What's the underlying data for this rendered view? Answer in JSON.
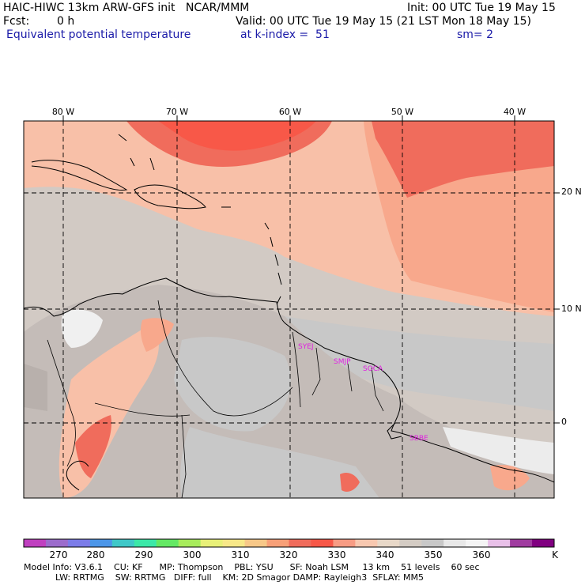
{
  "header": {
    "line1_left": "HAIC-HIWC 13km ARW-GFS init   NCAR/MMM",
    "line1_right": "Init: 00 UTC Tue 19 May 15",
    "fcst_label": "Fcst:",
    "fcst_value": "0 h",
    "valid": "Valid: 00 UTC Tue 19 May 15 (21 LST Mon 18 May 15)",
    "field": "Equivalent potential temperature",
    "level": "at k-index =  51",
    "smooth": "sm= 2"
  },
  "map": {
    "lon_labels": [
      "80 W",
      "70 W",
      "60 W",
      "50 W",
      "40 W"
    ],
    "lat_labels": [
      "20 N",
      "10 N",
      "0"
    ],
    "stations": [
      "SYEJ",
      "SMJP",
      "SOCA",
      "SBBE"
    ],
    "station_color": "#e020e0"
  },
  "colorbar": {
    "unit": "K",
    "tick_labels": [
      "270",
      "280",
      "290",
      "300",
      "310",
      "320",
      "330",
      "340",
      "350",
      "360"
    ],
    "colors": [
      "#c040c0",
      "#9c6ccc",
      "#7c7ce8",
      "#4c96e8",
      "#40c8c8",
      "#3ce8a8",
      "#64e864",
      "#a8ec5c",
      "#e8f078",
      "#f8e888",
      "#f8c888",
      "#f8a078",
      "#f06c5c",
      "#f85848",
      "#f89c84",
      "#f8c8b0",
      "#e8d8c8",
      "#d4ccc4",
      "#c8c8c8",
      "#e8e8e8",
      "#f4f4f4",
      "#e8c0e8",
      "#a03ca0",
      "#800080"
    ]
  },
  "model_info": {
    "line1": "Model Info: V3.6.1    CU: KF      MP: Thompson    PBL: YSU      SF: Noah LSM     13 km    51 levels    60 sec",
    "line2": "LW: RRTMG    SW: RRTMG   DIFF: full    KM: 2D Smagor DAMP: Rayleigh3  SFLAY: MM5"
  }
}
